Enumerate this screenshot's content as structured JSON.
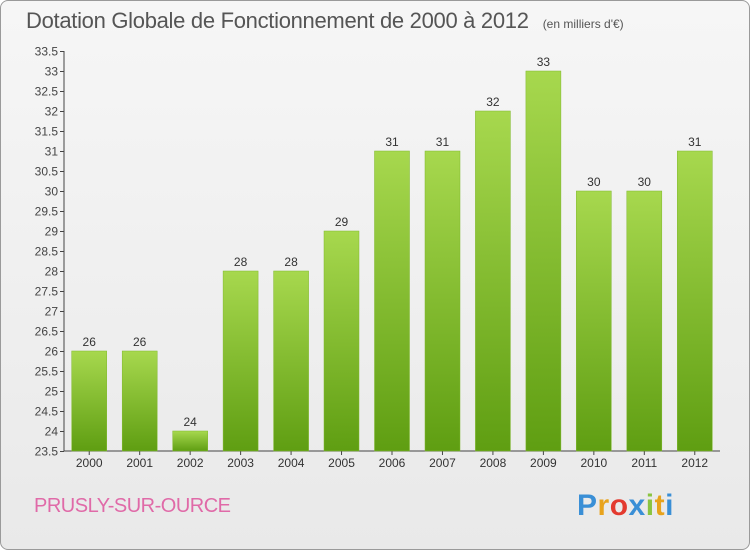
{
  "chart_data": {
    "type": "bar",
    "title": "Dotation Globale de Fonctionnement de 2000 à 2012",
    "subtitle": "(en milliers d'€)",
    "xlabel": "",
    "ylabel": "",
    "categories": [
      "2000",
      "2001",
      "2002",
      "2003",
      "2004",
      "2005",
      "2006",
      "2007",
      "2008",
      "2009",
      "2010",
      "2011",
      "2012"
    ],
    "values": [
      26,
      26,
      24,
      28,
      28,
      29,
      31,
      31,
      32,
      33,
      30,
      30,
      31
    ],
    "ylim": [
      23.5,
      33.5
    ],
    "yticks": [
      "23.5",
      "24",
      "24.5",
      "25",
      "25.5",
      "26",
      "26.5",
      "27",
      "27.5",
      "28",
      "28.5",
      "29",
      "29.5",
      "30",
      "30.5",
      "31",
      "31.5",
      "32",
      "32.5",
      "33",
      "33.5"
    ],
    "grid": false,
    "legend": "none"
  },
  "commune": "PRUSLY-SUR-OURCE",
  "brand": {
    "letters": [
      "P",
      "r",
      "o",
      "x",
      "i",
      "t",
      "i"
    ],
    "colors": [
      "#3a8fd6",
      "#e8a31c",
      "#e33a2f",
      "#3a8fd6",
      "#8ac440",
      "#e8a31c",
      "#3a8fd6"
    ]
  },
  "colors": {
    "bar_top": "#a7d84e",
    "bar_bottom": "#5f9e12",
    "text": "#555555",
    "commune": "#e06aa8"
  }
}
